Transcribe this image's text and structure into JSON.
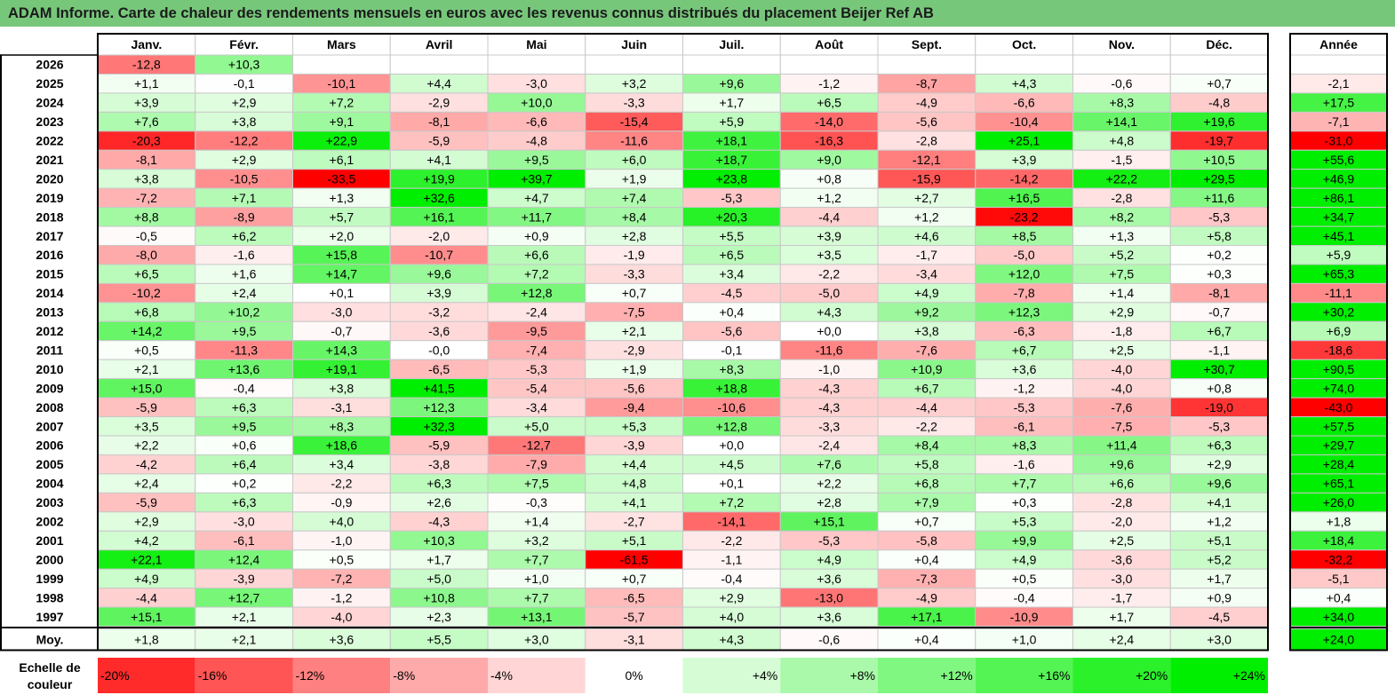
{
  "title": "ADAM Informe. Carte de chaleur des rendements mensuels en euros avec les revenus connus distribués du placement Beijer Ref AB",
  "chart_data": {
    "type": "heatmap",
    "title": "ADAM Informe. Carte de chaleur des rendements mensuels en euros avec les revenus connus distribués du placement Beijer Ref AB",
    "columns": [
      "Janv.",
      "Févr.",
      "Mars",
      "Avril",
      "Mai",
      "Juin",
      "Juil.",
      "Août",
      "Sept.",
      "Oct.",
      "Nov.",
      "Déc."
    ],
    "year_column_label": "Année",
    "rows": [
      {
        "label": "2026",
        "values": [
          -12.8,
          10.3,
          null,
          null,
          null,
          null,
          null,
          null,
          null,
          null,
          null,
          null
        ],
        "year": null
      },
      {
        "label": "2025",
        "values": [
          1.1,
          -0.1,
          -10.1,
          4.4,
          -3.0,
          3.2,
          9.6,
          -1.2,
          -8.7,
          4.3,
          -0.6,
          0.7
        ],
        "year": -2.1
      },
      {
        "label": "2024",
        "values": [
          3.9,
          2.9,
          7.2,
          -2.9,
          10.0,
          -3.3,
          1.7,
          6.5,
          -4.9,
          -6.6,
          8.3,
          -4.8
        ],
        "year": 17.5
      },
      {
        "label": "2023",
        "values": [
          7.6,
          3.8,
          9.1,
          -8.1,
          -6.6,
          -15.4,
          5.9,
          -14.0,
          -5.6,
          -10.4,
          14.1,
          19.6
        ],
        "year": -7.1
      },
      {
        "label": "2022",
        "values": [
          -20.3,
          -12.2,
          22.9,
          -5.9,
          -4.8,
          -11.6,
          18.1,
          -16.3,
          -2.8,
          25.1,
          4.8,
          -19.7
        ],
        "year": -31.0
      },
      {
        "label": "2021",
        "values": [
          -8.1,
          2.9,
          6.1,
          4.1,
          9.5,
          6.0,
          18.7,
          9.0,
          -12.1,
          3.9,
          -1.5,
          10.5
        ],
        "year": 55.6
      },
      {
        "label": "2020",
        "values": [
          3.8,
          -10.5,
          -33.5,
          19.9,
          39.7,
          1.9,
          23.8,
          0.8,
          -15.9,
          -14.2,
          22.2,
          29.5
        ],
        "year": 46.9
      },
      {
        "label": "2019",
        "values": [
          -7.2,
          7.1,
          1.3,
          32.6,
          4.7,
          7.4,
          -5.3,
          1.2,
          2.7,
          16.5,
          -2.8,
          11.6
        ],
        "year": 86.1
      },
      {
        "label": "2018",
        "values": [
          8.8,
          -8.9,
          5.7,
          16.1,
          11.7,
          8.4,
          20.3,
          -4.4,
          1.2,
          -23.2,
          8.2,
          -5.3
        ],
        "year": 34.7
      },
      {
        "label": "2017",
        "values": [
          -0.5,
          6.2,
          2.0,
          -2.0,
          0.9,
          2.8,
          5.5,
          3.9,
          4.6,
          8.5,
          1.3,
          5.8
        ],
        "year": 45.1
      },
      {
        "label": "2016",
        "values": [
          -8.0,
          -1.6,
          15.8,
          -10.7,
          6.6,
          -1.9,
          6.5,
          3.5,
          -1.7,
          -5.0,
          5.2,
          0.2
        ],
        "year": 5.9
      },
      {
        "label": "2015",
        "values": [
          6.5,
          1.6,
          14.7,
          9.6,
          7.2,
          -3.3,
          3.4,
          -2.2,
          -3.4,
          12.0,
          7.5,
          0.3
        ],
        "year": 65.3
      },
      {
        "label": "2014",
        "values": [
          -10.2,
          2.4,
          0.1,
          3.9,
          12.8,
          0.7,
          -4.5,
          -5.0,
          4.9,
          -7.8,
          1.4,
          -8.1
        ],
        "year": -11.1
      },
      {
        "label": "2013",
        "values": [
          6.8,
          10.2,
          -3.0,
          -3.2,
          -2.4,
          -7.5,
          0.4,
          4.3,
          9.2,
          12.3,
          2.9,
          -0.7
        ],
        "year": 30.2
      },
      {
        "label": "2012",
        "values": [
          14.2,
          9.5,
          -0.7,
          -3.6,
          -9.5,
          2.1,
          -5.6,
          0.0,
          3.8,
          -6.3,
          -1.8,
          6.7
        ],
        "year": 6.9
      },
      {
        "label": "2011",
        "values": [
          0.5,
          -11.3,
          14.3,
          -0.0,
          -7.4,
          -2.9,
          -0.1,
          -11.6,
          -7.6,
          6.7,
          2.5,
          -1.1
        ],
        "year": -18.6
      },
      {
        "label": "2010",
        "values": [
          2.1,
          13.6,
          19.1,
          -6.5,
          -5.3,
          1.9,
          8.3,
          -1.0,
          10.9,
          3.6,
          -4.0,
          30.7
        ],
        "year": 90.5
      },
      {
        "label": "2009",
        "values": [
          15.0,
          -0.4,
          3.8,
          41.5,
          -5.4,
          -5.6,
          18.8,
          -4.3,
          6.7,
          -1.2,
          -4.0,
          0.8
        ],
        "year": 74.0
      },
      {
        "label": "2008",
        "values": [
          -5.9,
          6.3,
          -3.1,
          12.3,
          -3.4,
          -9.4,
          -10.6,
          -4.3,
          -4.4,
          -5.3,
          -7.6,
          -19.0
        ],
        "year": -43.0
      },
      {
        "label": "2007",
        "values": [
          3.5,
          9.5,
          8.3,
          32.3,
          5.0,
          5.3,
          12.8,
          -3.3,
          -2.2,
          -6.1,
          -7.5,
          -5.3
        ],
        "year": 57.5
      },
      {
        "label": "2006",
        "values": [
          2.2,
          0.6,
          18.6,
          -5.9,
          -12.7,
          -3.9,
          0.0,
          -2.4,
          8.4,
          8.3,
          11.4,
          6.3
        ],
        "year": 29.7
      },
      {
        "label": "2005",
        "values": [
          -4.2,
          6.4,
          3.4,
          -3.8,
          -7.9,
          4.4,
          4.5,
          7.6,
          5.8,
          -1.6,
          9.6,
          2.9
        ],
        "year": 28.4
      },
      {
        "label": "2004",
        "values": [
          2.4,
          0.2,
          -2.2,
          6.3,
          7.5,
          4.8,
          0.1,
          2.2,
          6.8,
          7.7,
          6.6,
          9.6
        ],
        "year": 65.1
      },
      {
        "label": "2003",
        "values": [
          -5.9,
          6.3,
          -0.9,
          2.6,
          -0.3,
          4.1,
          7.2,
          2.8,
          7.9,
          0.3,
          -2.8,
          4.1
        ],
        "year": 26.0
      },
      {
        "label": "2002",
        "values": [
          2.9,
          -3.0,
          4.0,
          -4.3,
          1.4,
          -2.7,
          -14.1,
          15.1,
          0.7,
          5.3,
          -2.0,
          1.2
        ],
        "year": 1.8
      },
      {
        "label": "2001",
        "values": [
          4.2,
          -6.1,
          -1.0,
          10.3,
          3.2,
          5.1,
          -2.2,
          -5.3,
          -5.8,
          9.9,
          2.5,
          5.1
        ],
        "year": 18.4
      },
      {
        "label": "2000",
        "values": [
          22.1,
          12.4,
          0.5,
          1.7,
          7.7,
          -61.5,
          -1.1,
          4.9,
          0.4,
          4.9,
          -3.6,
          5.2
        ],
        "year": -32.2
      },
      {
        "label": "1999",
        "values": [
          4.9,
          -3.9,
          -7.2,
          5.0,
          1.0,
          0.7,
          -0.4,
          3.6,
          -7.3,
          0.5,
          -3.0,
          1.7
        ],
        "year": -5.1
      },
      {
        "label": "1998",
        "values": [
          -4.4,
          12.7,
          -1.2,
          10.8,
          7.7,
          -6.5,
          2.9,
          -13.0,
          -4.9,
          -0.4,
          -1.7,
          0.9
        ],
        "year": 0.4
      },
      {
        "label": "1997",
        "values": [
          15.1,
          2.1,
          -4.0,
          2.3,
          13.1,
          -5.7,
          4.0,
          3.6,
          17.1,
          -10.9,
          1.7,
          -4.5
        ],
        "year": 34.0
      }
    ],
    "average_row": {
      "label": "Moy.",
      "values": [
        1.8,
        2.1,
        3.6,
        5.5,
        3.0,
        -3.1,
        4.3,
        -0.6,
        0.4,
        1.0,
        2.4,
        3.0
      ],
      "year": 24.0
    },
    "negative_zero_cells": [
      [
        15,
        3
      ]
    ],
    "legend": {
      "label_line1": "Echelle de",
      "label_line2": "couleur",
      "stops": [
        {
          "label": "-20%",
          "value": -20
        },
        {
          "label": "-16%",
          "value": -16
        },
        {
          "label": "-12%",
          "value": -12
        },
        {
          "label": "-8%",
          "value": -8
        },
        {
          "label": "-4%",
          "value": -4
        },
        {
          "label": "0%",
          "value": 0
        },
        {
          "label": "+4%",
          "value": 4
        },
        {
          "label": "+8%",
          "value": 8
        },
        {
          "label": "+12%",
          "value": 12
        },
        {
          "label": "+16%",
          "value": 16
        },
        {
          "label": "+20%",
          "value": 20
        },
        {
          "label": "+24%",
          "value": 24
        }
      ]
    },
    "colors": {
      "title_background": "#77c77b",
      "max_negative": "#ff0000",
      "neutral": "#ffffff",
      "max_positive": "#00ee00",
      "grid": "#c8c8c8",
      "border": "#000000"
    },
    "color_scale_limit": 24
  }
}
